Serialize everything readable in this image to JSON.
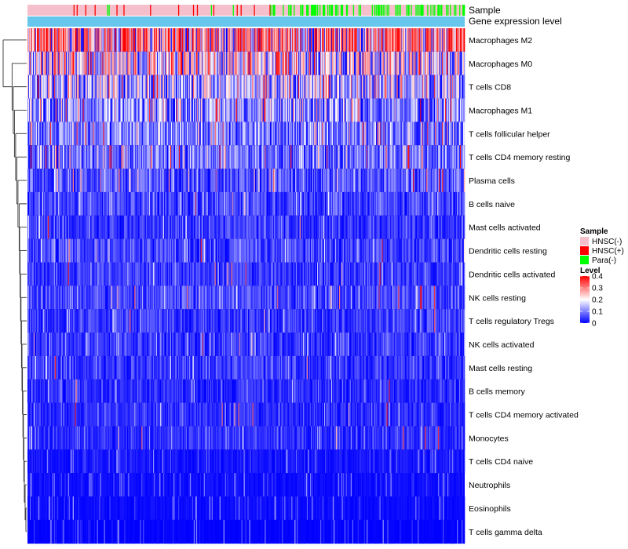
{
  "chart_data": {
    "type": "heatmap",
    "title": "",
    "annotations": [
      {
        "label": "Sample",
        "kind": "categorical"
      },
      {
        "label": "Gene expression level",
        "kind": "continuous",
        "color": "#66c6eb"
      }
    ],
    "rows": [
      "Macrophages M2",
      "Macrophages M0",
      "T cells CD8",
      "Macrophages M1",
      "T cells follicular helper",
      "T cells CD4 memory resting",
      "Plasma cells",
      "B cells naive",
      "Mast cells activated",
      "Dendritic cells resting",
      "Dendritic cells activated",
      "NK cells resting",
      "T cells regulatory  Tregs",
      "NK cells activated",
      "Mast cells resting",
      "B cells memory",
      "T cells CD4 memory activated",
      "Monocytes",
      "T cells CD4 naive",
      "Neutrophils",
      "Eosinophils",
      "T cells gamma delta"
    ],
    "row_mean_levels": [
      0.22,
      0.14,
      0.12,
      0.1,
      0.09,
      0.08,
      0.06,
      0.05,
      0.04,
      0.05,
      0.04,
      0.05,
      0.04,
      0.04,
      0.04,
      0.03,
      0.03,
      0.03,
      0.015,
      0.01,
      0.008,
      0.003
    ],
    "row_high_value_prob": [
      0.3,
      0.2,
      0.08,
      0.06,
      0.03,
      0.03,
      0.02,
      0.01,
      0.005,
      0.01,
      0.005,
      0.01,
      0.005,
      0.005,
      0.005,
      0.005,
      0.005,
      0.003,
      0,
      0,
      0,
      0
    ],
    "n_columns": 560,
    "sample_groups": {
      "labels": [
        "HNSC(-)",
        "HNSC(+)",
        "Para(-)"
      ],
      "colors": [
        "#f5c0cb",
        "#ff0000",
        "#00ff00"
      ]
    },
    "color_scale": {
      "label": "Level",
      "min": 0,
      "max": 0.4,
      "ticks": [
        0.4,
        0.3,
        0.2,
        0.1,
        0
      ],
      "stops": [
        "#0000ff",
        "#ffffff",
        "#ff0000"
      ],
      "stop_values": [
        0,
        0.2,
        0.4
      ]
    },
    "legend_position": "right"
  }
}
